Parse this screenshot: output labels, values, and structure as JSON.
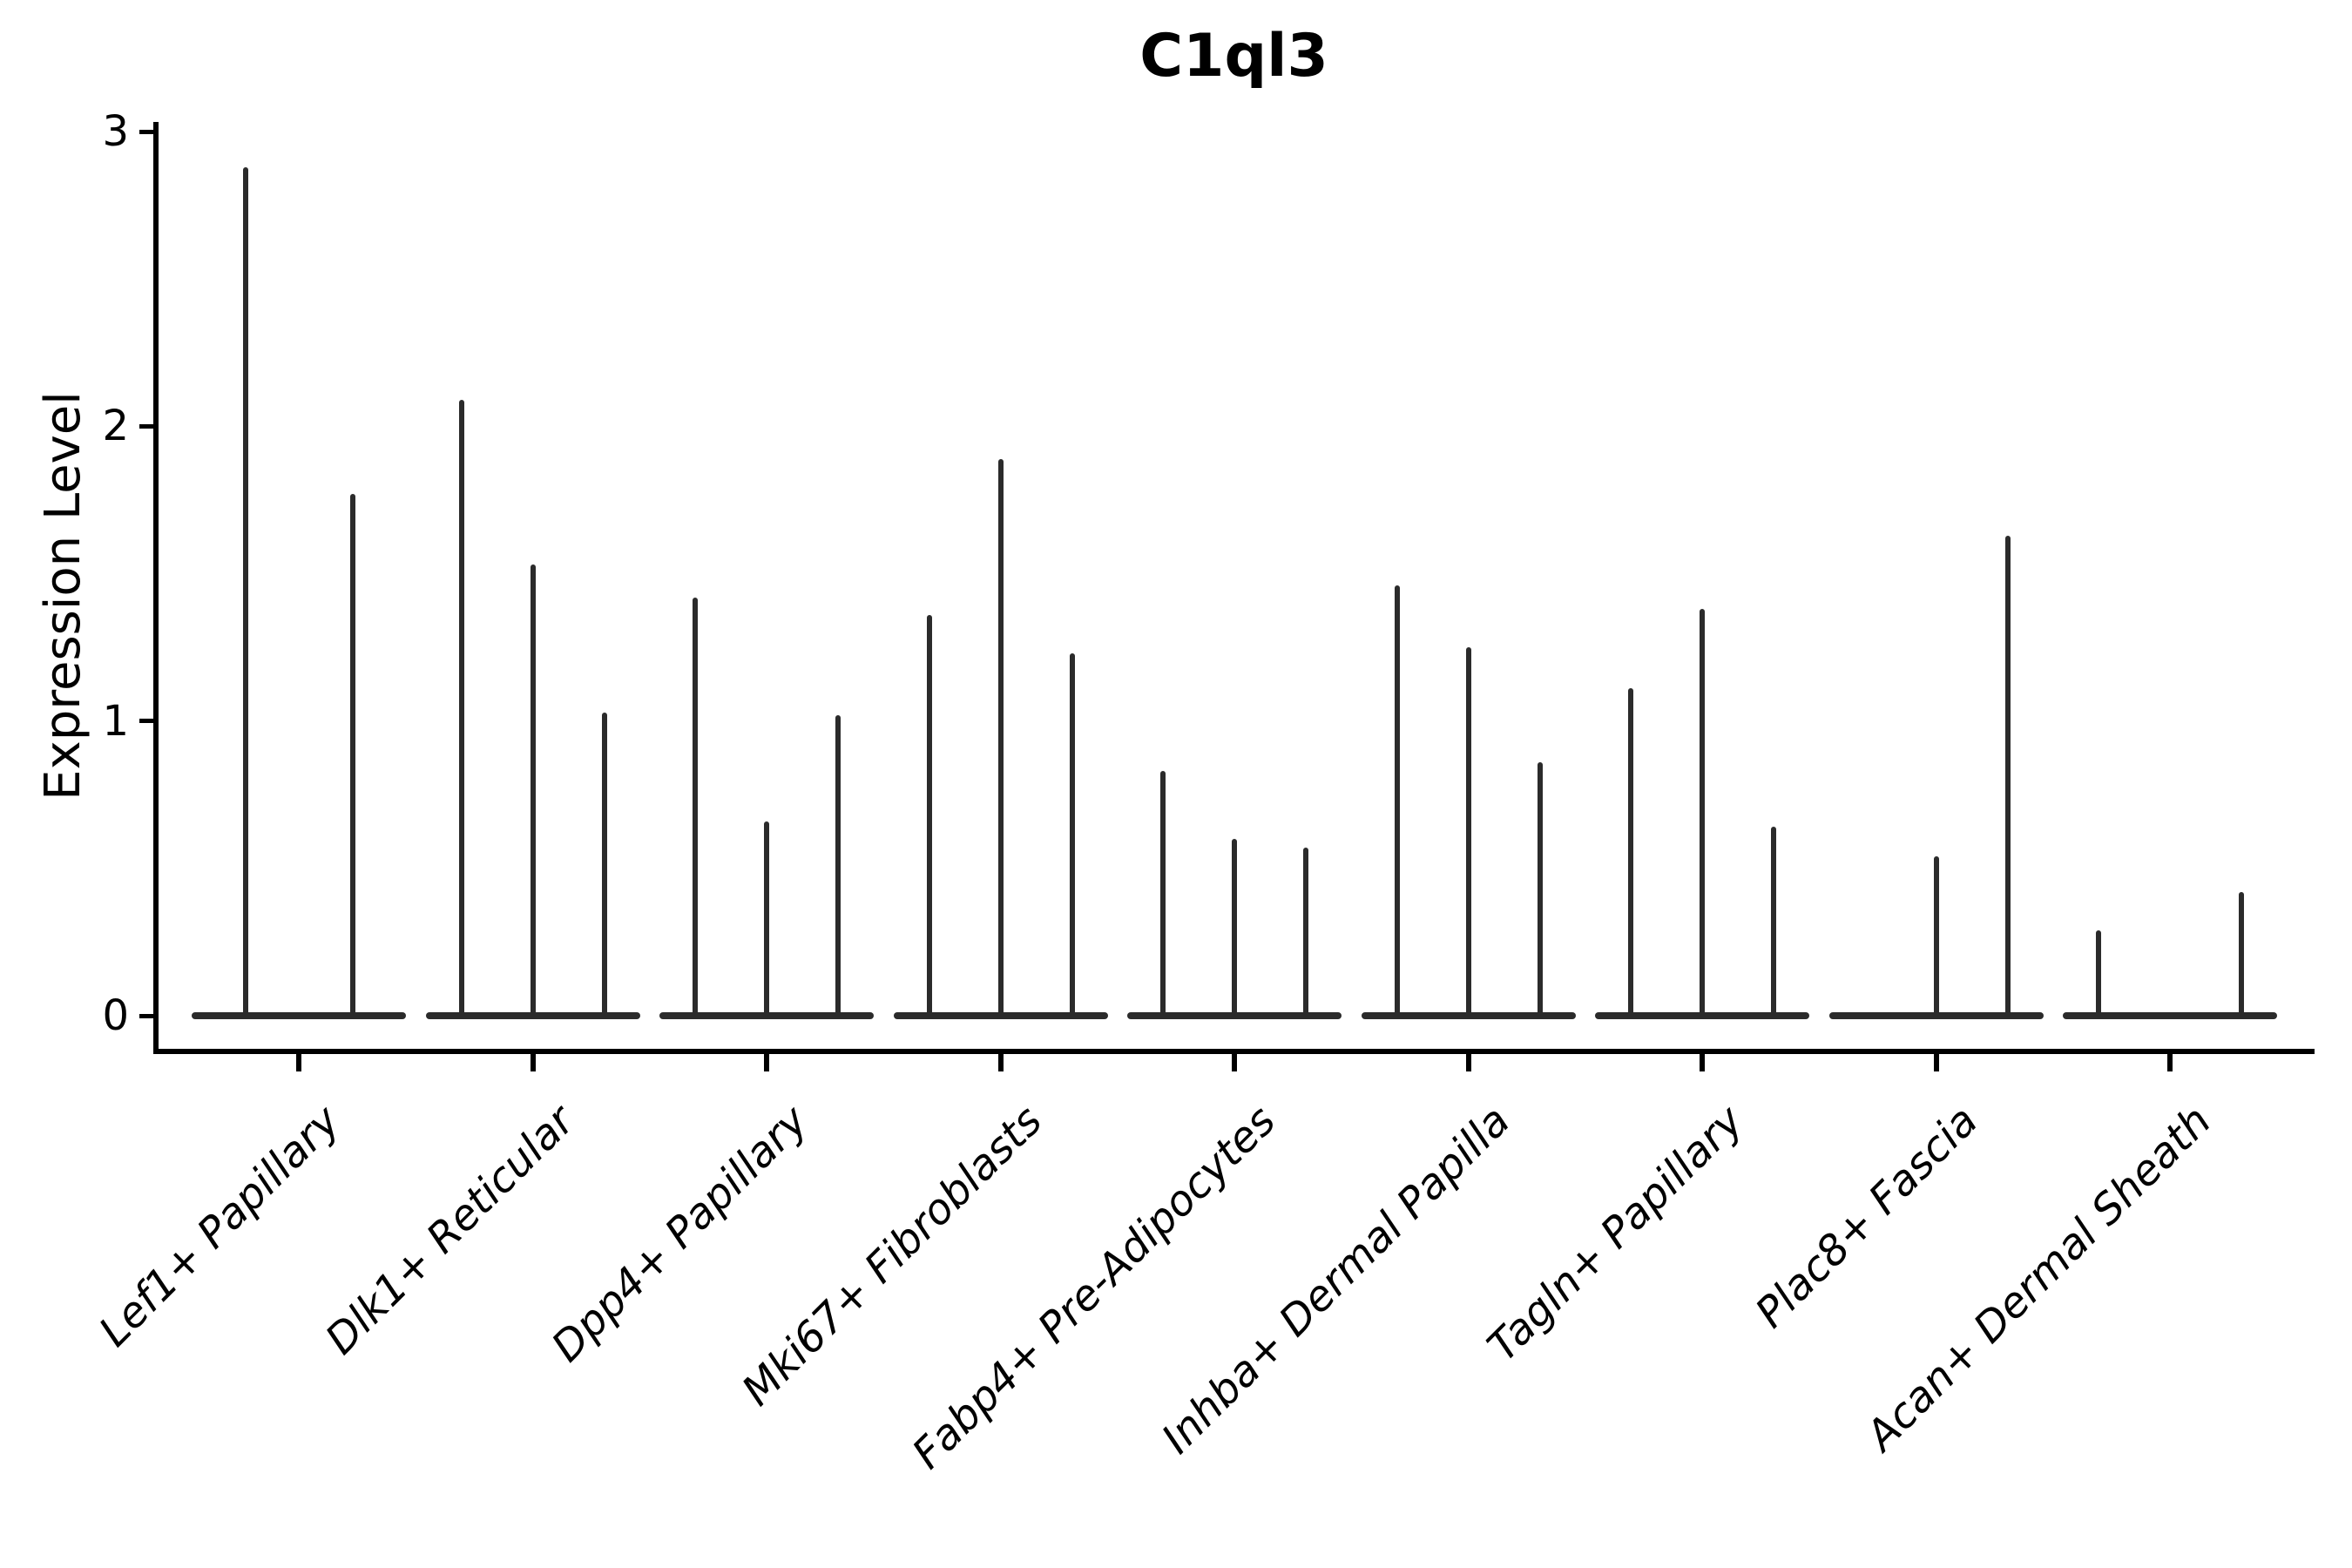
{
  "title": "C1ql3",
  "y_axis": {
    "label": "Expression Level",
    "tick_labels": [
      "0",
      "1",
      "2",
      "3"
    ]
  },
  "x_axis": {
    "categories": [
      "Lef1+ Papillary",
      "Dlk1+ Reticular",
      "Dpp4+ Papillary",
      "Mki67+ Fibroblasts",
      "Fabp4+ Pre-Adipocytes",
      "Inhba+ Dermal Papilla",
      "Tagln+ Papillary",
      "Plac8+ Fascia",
      "Acan+ Dermal Sheath"
    ]
  },
  "colors": {
    "background": "#ffffff",
    "axis": "#000000",
    "text": "#000000",
    "violin": "#2b2b2b"
  },
  "chart_data": {
    "type": "violin",
    "title": "C1ql3",
    "xlabel": "",
    "ylabel": "Expression Level",
    "ylim": [
      0,
      3
    ],
    "yticks": [
      0,
      1,
      2,
      3
    ],
    "grid": false,
    "legend": "none",
    "style_note": "needle-thin violins: flat disc at 0 plus vertical spike up to the max expression value; violins nearly all mass at 0",
    "categories": [
      "Lef1+ Papillary",
      "Dlk1+ Reticular",
      "Dpp4+ Papillary",
      "Mki67+ Fibroblasts",
      "Fabp4+ Pre-Adipocytes",
      "Inhba+ Dermal Papilla",
      "Tagln+ Papillary",
      "Plac8+ Fascia",
      "Acan+ Dermal Sheath"
    ],
    "groups": [
      {
        "label": "Lef1+ Papillary",
        "violin_spike_maxima": [
          2.88,
          1.77
        ]
      },
      {
        "label": "Dlk1+ Reticular",
        "violin_spike_maxima": [
          2.09,
          1.53,
          1.03
        ]
      },
      {
        "label": "Dpp4+ Papillary",
        "violin_spike_maxima": [
          1.42,
          0.66,
          1.02
        ]
      },
      {
        "label": "Mki67+ Fibroblasts",
        "violin_spike_maxima": [
          1.36,
          1.89,
          1.23
        ]
      },
      {
        "label": "Fabp4+ Pre-Adipocytes",
        "violin_spike_maxima": [
          0.83,
          0.6,
          0.57
        ]
      },
      {
        "label": "Inhba+ Dermal Papilla",
        "violin_spike_maxima": [
          1.46,
          1.25,
          0.86
        ]
      },
      {
        "label": "Tagln+ Papillary",
        "violin_spike_maxima": [
          1.11,
          1.38,
          0.64
        ]
      },
      {
        "label": "Plac8+ Fascia",
        "violin_spike_maxima": [
          null,
          0.54,
          1.63
        ]
      },
      {
        "label": "Acan+ Dermal Sheath",
        "violin_spike_maxima": [
          0.29,
          null,
          0.42
        ]
      }
    ]
  }
}
